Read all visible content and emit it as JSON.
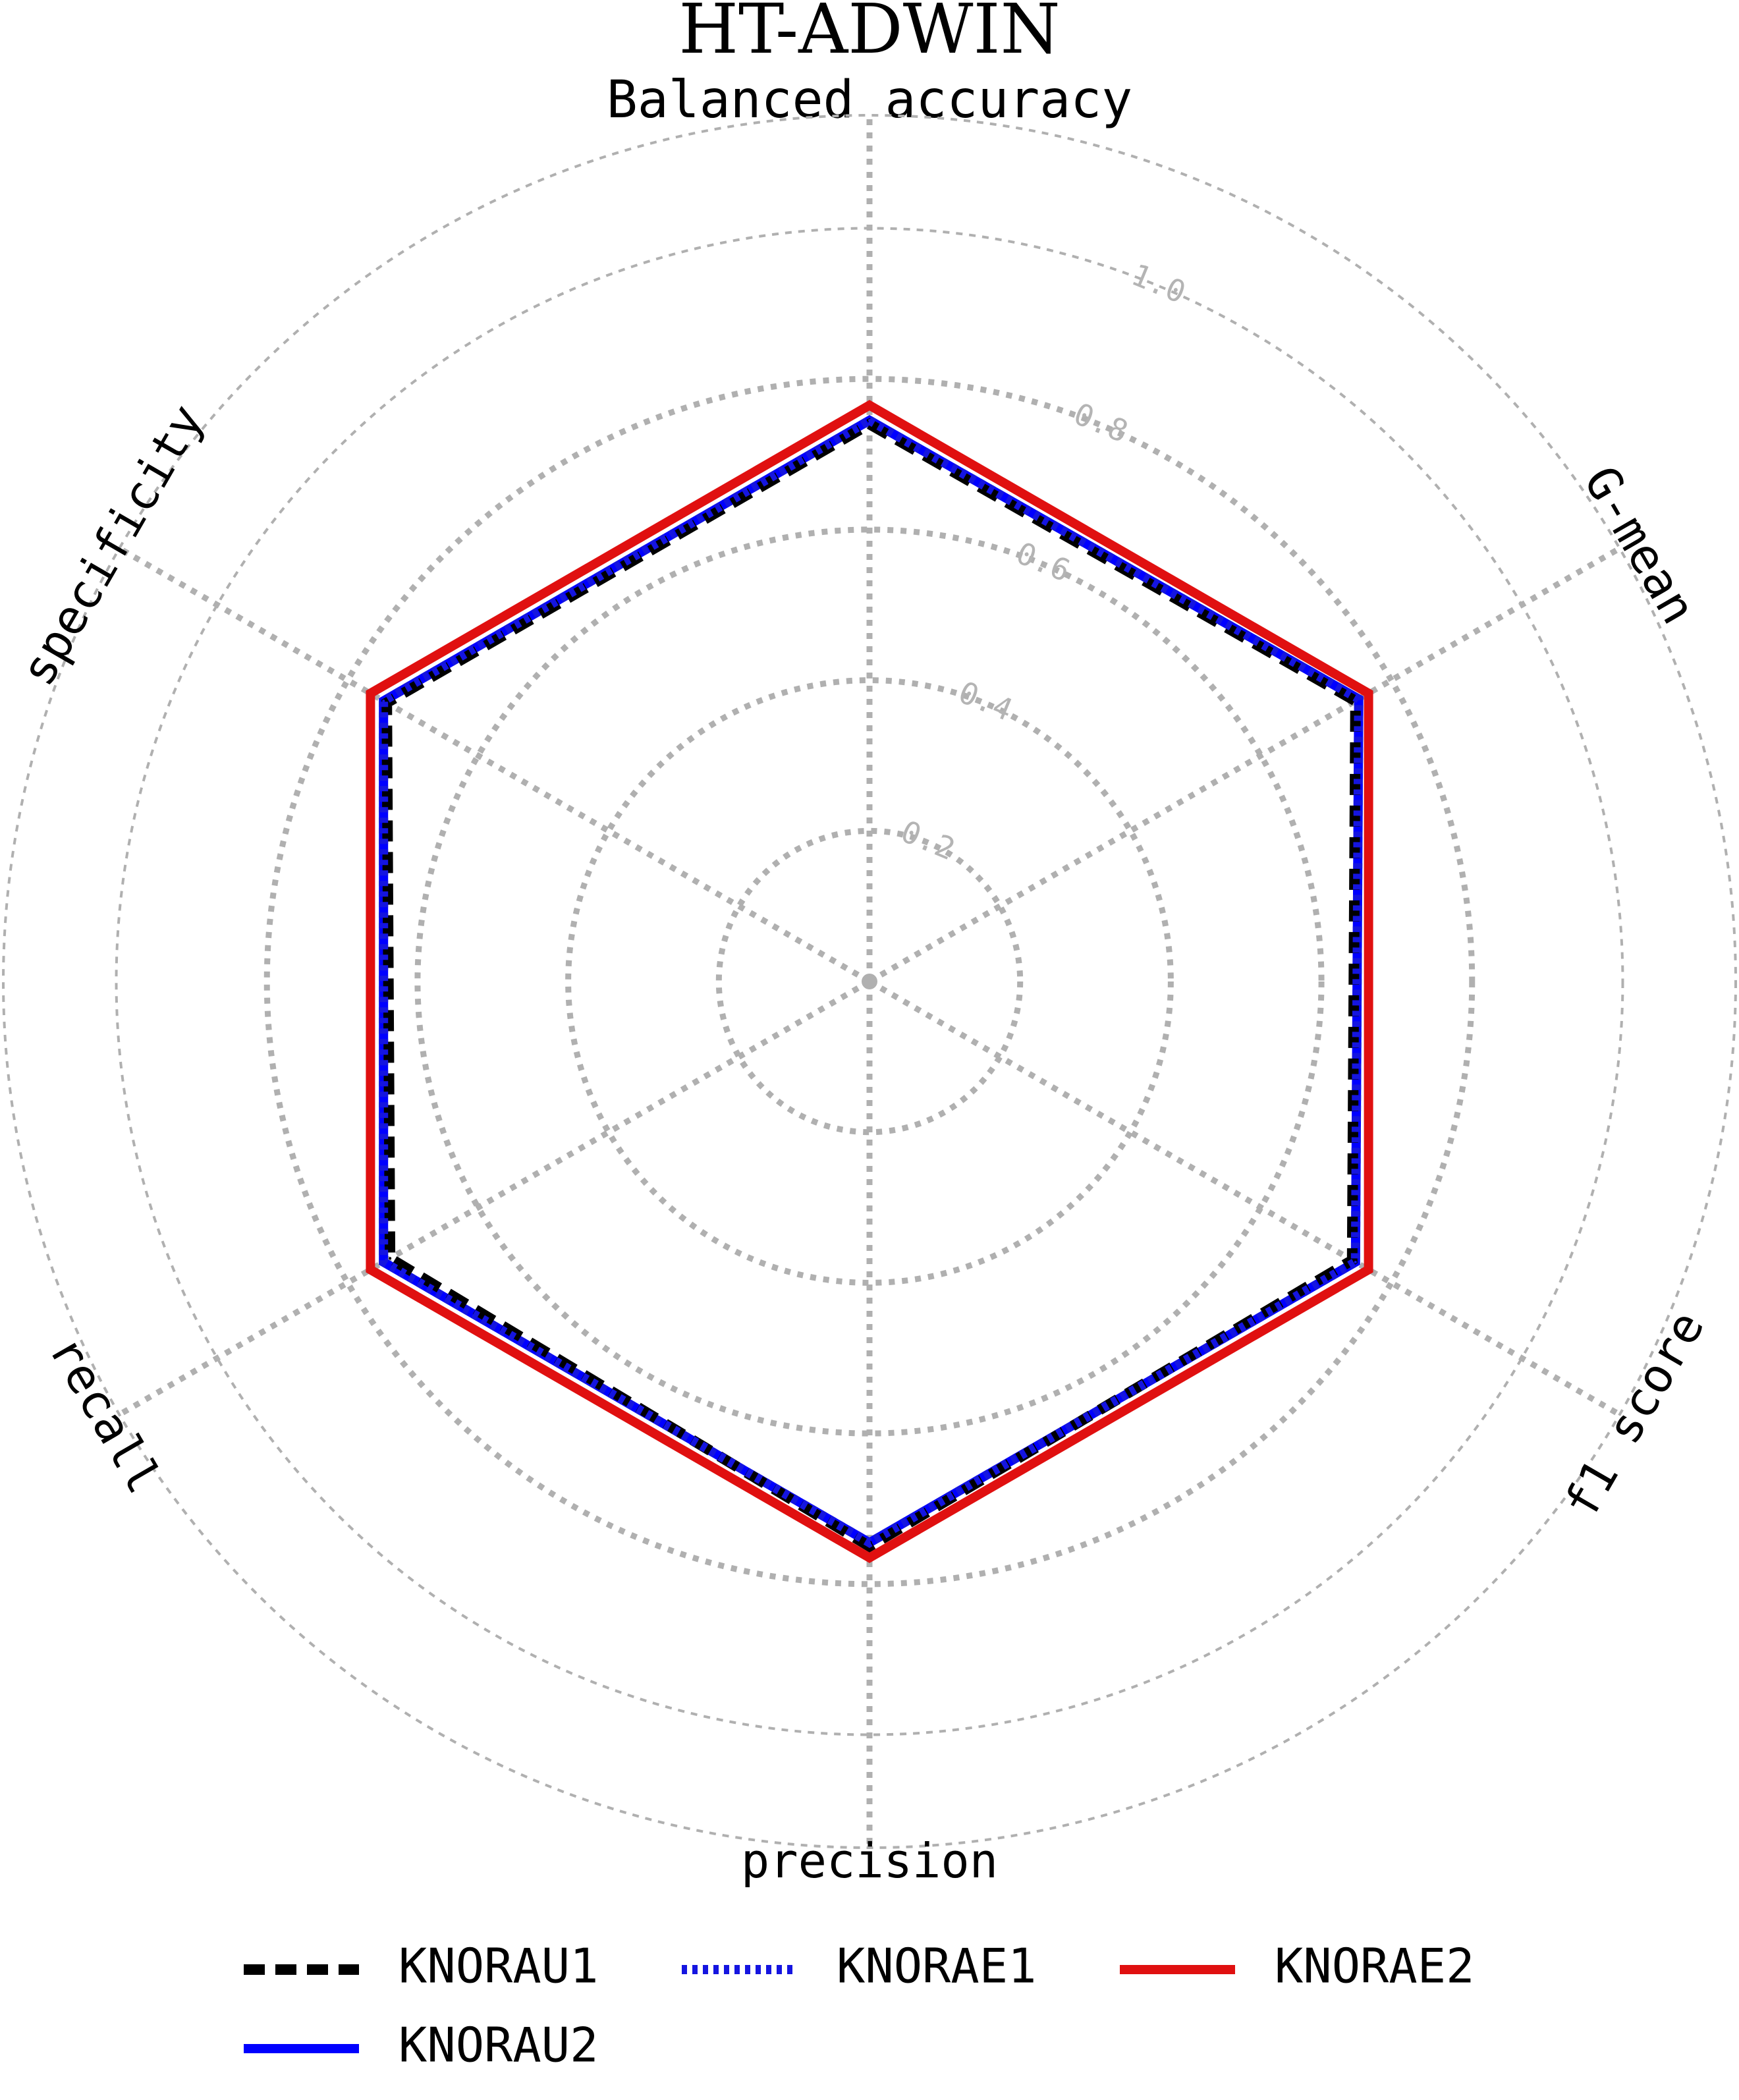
{
  "chart_data": {
    "type": "radar",
    "title": "HT-ADWIN",
    "axes": [
      "Balanced accuracy",
      "G-mean",
      "f1 score",
      "precision",
      "recall",
      "specificity"
    ],
    "rlim": [
      0,
      1.15
    ],
    "radial_ticks": [
      "0.2",
      "0.4",
      "0.6",
      "0.8",
      "1.0"
    ],
    "radial_tick_values": [
      0.2,
      0.4,
      0.6,
      0.8,
      1.0
    ],
    "grid": true,
    "legend_position": "bottom",
    "series": [
      {
        "name": "KNORAU1",
        "values": [
          0.74,
          0.745,
          0.74,
          0.75,
          0.735,
          0.74
        ],
        "color": "#000000",
        "style": "dashed"
      },
      {
        "name": "KNORAE1",
        "values": [
          0.745,
          0.75,
          0.745,
          0.745,
          0.745,
          0.745
        ],
        "color": "#1515e0",
        "style": "dotted"
      },
      {
        "name": "KNORAE2",
        "values": [
          0.765,
          0.765,
          0.765,
          0.765,
          0.765,
          0.765
        ],
        "color": "#e01010",
        "style": "solid"
      },
      {
        "name": "KNORAU2",
        "values": [
          0.745,
          0.75,
          0.745,
          0.745,
          0.745,
          0.745
        ],
        "color": "#0000ff",
        "style": "solid"
      }
    ]
  }
}
